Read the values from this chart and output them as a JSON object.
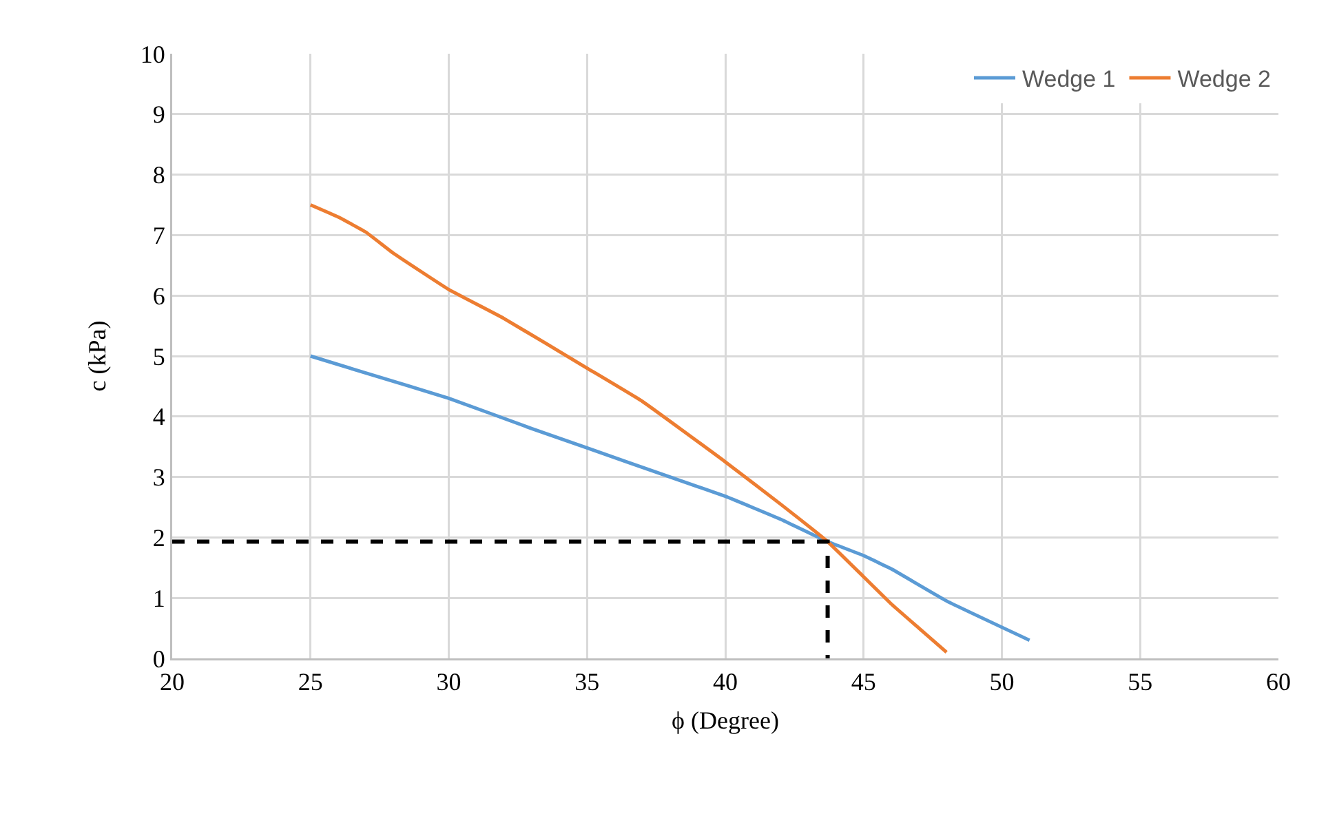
{
  "chart_data": {
    "type": "line",
    "xlabel": "ϕ (Degree)",
    "ylabel": "c (kPa)",
    "xlim": [
      20,
      60
    ],
    "xticks": [
      20,
      25,
      30,
      35,
      40,
      45,
      50,
      55,
      60
    ],
    "ylim": [
      0,
      10
    ],
    "yticks": [
      0,
      1,
      2,
      3,
      4,
      5,
      6,
      7,
      8,
      9,
      10
    ],
    "grid": true,
    "legend": "top right",
    "marker": "none",
    "line_style": "solid",
    "series": [
      {
        "name": "Wedge 1",
        "color": "#5b9bd5",
        "x": [
          25,
          27,
          30,
          33,
          35,
          38,
          40,
          42,
          43.7,
          45,
          46,
          48,
          51
        ],
        "values": [
          5,
          4.72,
          4.3,
          3.8,
          3.48,
          3,
          2.68,
          2.3,
          1.93,
          1.7,
          1.48,
          0.95,
          0.3
        ]
      },
      {
        "name": "Wedge 2",
        "color": "#ed7d31",
        "x": [
          25,
          26,
          27,
          28,
          30,
          32,
          35,
          37,
          40,
          42,
          43.7,
          45,
          46,
          47,
          48
        ],
        "values": [
          7.5,
          7.3,
          7.05,
          6.7,
          6.1,
          5.62,
          4.8,
          4.25,
          3.25,
          2.55,
          1.93,
          1.35,
          0.9,
          0.5,
          0.1
        ]
      },
      {
        "type": "line",
        "line_style": "dashed",
        "color": "#000000",
        "x": [
          20,
          43.7,
          43.7
        ],
        "values": [
          1.93,
          1.93,
          0
        ]
      }
    ]
  }
}
